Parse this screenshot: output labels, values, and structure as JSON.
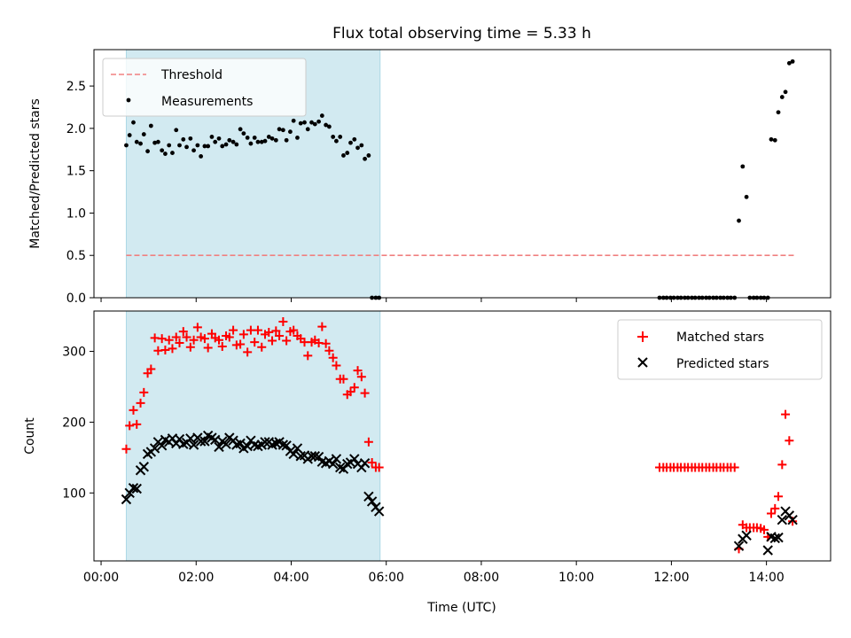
{
  "figure": {
    "title": "Flux total observing time = 5.33 h"
  },
  "colors": {
    "band": "#add8e6",
    "threshold": "#f08080",
    "matched": "#ff0000",
    "predicted": "#000000",
    "measurement": "#000000"
  },
  "chart_data": [
    {
      "type": "scatter",
      "panel": "top",
      "xlabel": "",
      "ylabel": "Matched/Predicted stars",
      "xlim": [
        -0.15,
        15.35
      ],
      "ylim": [
        0,
        2.93
      ],
      "yticks": [
        0.0,
        0.5,
        1.0,
        1.5,
        2.0,
        2.5
      ],
      "ytick_labels": [
        "0.0",
        "0.5",
        "1.0",
        "1.5",
        "2.0",
        "2.5"
      ],
      "shaded_span_hours": [
        0.53,
        5.87
      ],
      "legend": {
        "position": "top-left",
        "entries": [
          "Threshold",
          "Measurements"
        ]
      },
      "series": [
        {
          "name": "Threshold",
          "style": "dashed-line",
          "x": [
            0.53,
            14.6
          ],
          "y": [
            0.5,
            0.5
          ]
        },
        {
          "name": "Measurements",
          "style": "dot",
          "x": [
            0.53,
            0.6,
            0.68,
            0.75,
            0.83,
            0.9,
            0.98,
            1.05,
            1.13,
            1.2,
            1.28,
            1.35,
            1.43,
            1.5,
            1.58,
            1.65,
            1.73,
            1.8,
            1.88,
            1.95,
            2.03,
            2.1,
            2.18,
            2.25,
            2.33,
            2.4,
            2.48,
            2.55,
            2.63,
            2.7,
            2.78,
            2.85,
            2.93,
            3.0,
            3.08,
            3.15,
            3.23,
            3.3,
            3.38,
            3.45,
            3.53,
            3.6,
            3.68,
            3.75,
            3.83,
            3.9,
            3.98,
            4.05,
            4.13,
            4.2,
            4.28,
            4.35,
            4.43,
            4.5,
            4.58,
            4.65,
            4.73,
            4.8,
            4.88,
            4.95,
            5.03,
            5.1,
            5.18,
            5.25,
            5.33,
            5.4,
            5.48,
            5.55,
            5.63,
            5.7,
            5.78,
            5.85,
            11.75,
            11.83,
            11.9,
            11.98,
            12.05,
            12.13,
            12.2,
            12.28,
            12.35,
            12.43,
            12.5,
            12.58,
            12.65,
            12.73,
            12.8,
            12.88,
            12.95,
            13.03,
            13.1,
            13.18,
            13.25,
            13.33,
            13.42,
            13.5,
            13.58,
            13.65,
            13.73,
            13.8,
            13.88,
            13.95,
            14.03,
            14.1,
            14.18,
            14.25,
            14.33,
            14.4,
            14.48,
            14.55
          ],
          "y": [
            1.8,
            1.92,
            2.07,
            1.84,
            1.82,
            1.93,
            1.73,
            2.03,
            1.83,
            1.84,
            1.74,
            1.7,
            1.8,
            1.71,
            1.98,
            1.8,
            1.87,
            1.78,
            1.88,
            1.74,
            1.8,
            1.67,
            1.79,
            1.79,
            1.9,
            1.84,
            1.88,
            1.79,
            1.81,
            1.86,
            1.84,
            1.81,
            1.99,
            1.94,
            1.89,
            1.82,
            1.89,
            1.84,
            1.84,
            1.85,
            1.9,
            1.88,
            1.86,
            1.99,
            1.98,
            1.86,
            1.96,
            2.09,
            1.89,
            2.06,
            2.07,
            1.99,
            2.07,
            2.05,
            2.08,
            2.15,
            2.04,
            2.02,
            1.9,
            1.85,
            1.9,
            1.68,
            1.71,
            1.83,
            1.87,
            1.77,
            1.8,
            1.64,
            1.68,
            0.0,
            0.0,
            0.0,
            0.0,
            0.0,
            0.0,
            0.0,
            0.0,
            0.0,
            0.0,
            0.0,
            0.0,
            0.0,
            0.0,
            0.0,
            0.0,
            0.0,
            0.0,
            0.0,
            0.0,
            0.0,
            0.0,
            0.0,
            0.0,
            0.0,
            0.91,
            1.55,
            1.19,
            0.0,
            0.0,
            0.0,
            0.0,
            0.0,
            0.0,
            1.87,
            1.86,
            2.19,
            2.37,
            2.43,
            2.77,
            2.79
          ]
        }
      ]
    },
    {
      "type": "scatter",
      "panel": "bottom",
      "xlabel": "Time (UTC)",
      "ylabel": "Count",
      "xlim": [
        -0.15,
        15.35
      ],
      "ylim": [
        4,
        357
      ],
      "yticks": [
        100,
        200,
        300
      ],
      "ytick_labels": [
        "100",
        "200",
        "300"
      ],
      "xticks": [
        0,
        2,
        4,
        6,
        8,
        10,
        12,
        14
      ],
      "xtick_labels": [
        "00:00",
        "02:00",
        "04:00",
        "06:00",
        "08:00",
        "10:00",
        "12:00",
        "14:00"
      ],
      "shaded_span_hours": [
        0.53,
        5.87
      ],
      "legend": {
        "position": "top-right",
        "entries": [
          "Matched stars",
          "Predicted stars"
        ]
      },
      "series": [
        {
          "name": "Matched stars",
          "marker": "plus",
          "x": [
            0.53,
            0.6,
            0.68,
            0.75,
            0.83,
            0.9,
            0.98,
            1.05,
            1.13,
            1.2,
            1.28,
            1.35,
            1.43,
            1.5,
            1.58,
            1.65,
            1.73,
            1.8,
            1.88,
            1.95,
            2.03,
            2.1,
            2.18,
            2.25,
            2.33,
            2.4,
            2.48,
            2.55,
            2.63,
            2.7,
            2.78,
            2.85,
            2.93,
            3.0,
            3.08,
            3.15,
            3.23,
            3.3,
            3.38,
            3.45,
            3.53,
            3.6,
            3.68,
            3.75,
            3.83,
            3.9,
            3.98,
            4.05,
            4.13,
            4.2,
            4.28,
            4.35,
            4.43,
            4.5,
            4.58,
            4.65,
            4.73,
            4.8,
            4.88,
            4.95,
            5.03,
            5.1,
            5.18,
            5.25,
            5.33,
            5.4,
            5.48,
            5.55,
            5.63,
            5.7,
            5.78,
            5.85,
            11.75,
            11.83,
            11.9,
            11.98,
            12.05,
            12.13,
            12.2,
            12.28,
            12.35,
            12.43,
            12.5,
            12.58,
            12.65,
            12.73,
            12.8,
            12.88,
            12.95,
            13.03,
            13.1,
            13.18,
            13.25,
            13.33,
            13.42,
            13.5,
            13.58,
            13.65,
            13.73,
            13.8,
            13.88,
            13.95,
            14.03,
            14.1,
            14.18,
            14.25,
            14.33,
            14.4,
            14.48,
            14.55
          ],
          "y": [
            162,
            195,
            217,
            197,
            227,
            242,
            269,
            275,
            319,
            301,
            318,
            302,
            316,
            304,
            320,
            312,
            328,
            320,
            306,
            316,
            334,
            320,
            318,
            305,
            325,
            319,
            316,
            307,
            322,
            320,
            330,
            309,
            310,
            324,
            299,
            330,
            313,
            330,
            306,
            324,
            327,
            315,
            329,
            322,
            342,
            315,
            328,
            330,
            322,
            318,
            313,
            294,
            313,
            316,
            312,
            335,
            311,
            301,
            291,
            280,
            261,
            261,
            239,
            243,
            249,
            273,
            264,
            241,
            172,
            143,
            136,
            136,
            136,
            136,
            136,
            136,
            136,
            136,
            136,
            136,
            136,
            136,
            136,
            136,
            136,
            136,
            136,
            136,
            136,
            136,
            136,
            136,
            136,
            136,
            21,
            55,
            51,
            51,
            51,
            51,
            50,
            48,
            38,
            71,
            78,
            95,
            140,
            211,
            174,
            60
          ]
        },
        {
          "name": "Predicted stars",
          "marker": "x",
          "x": [
            0.53,
            0.6,
            0.68,
            0.75,
            0.83,
            0.9,
            0.98,
            1.05,
            1.13,
            1.2,
            1.28,
            1.35,
            1.43,
            1.5,
            1.58,
            1.65,
            1.73,
            1.8,
            1.88,
            1.95,
            2.03,
            2.1,
            2.18,
            2.25,
            2.33,
            2.4,
            2.48,
            2.55,
            2.63,
            2.7,
            2.78,
            2.85,
            2.93,
            3.0,
            3.08,
            3.15,
            3.23,
            3.3,
            3.38,
            3.45,
            3.53,
            3.6,
            3.68,
            3.75,
            3.83,
            3.9,
            3.98,
            4.05,
            4.13,
            4.2,
            4.28,
            4.35,
            4.43,
            4.5,
            4.58,
            4.65,
            4.73,
            4.8,
            4.88,
            4.95,
            5.03,
            5.1,
            5.18,
            5.25,
            5.33,
            5.4,
            5.48,
            5.55,
            5.63,
            5.7,
            5.78,
            5.85,
            13.42,
            13.5,
            13.58,
            14.03,
            14.1,
            14.18,
            14.25,
            14.33,
            14.4,
            14.48,
            14.55
          ],
          "y": [
            91,
            100,
            107,
            106,
            132,
            137,
            155,
            158,
            163,
            172,
            167,
            175,
            172,
            177,
            170,
            176,
            169,
            171,
            177,
            168,
            178,
            173,
            173,
            181,
            178,
            175,
            165,
            173,
            169,
            178,
            174,
            168,
            170,
            163,
            166,
            174,
            168,
            166,
            168,
            172,
            172,
            168,
            170,
            172,
            168,
            167,
            159,
            155,
            163,
            152,
            153,
            148,
            152,
            152,
            151,
            144,
            142,
            145,
            141,
            148,
            136,
            134,
            141,
            143,
            148,
            141,
            136,
            142,
            95,
            88,
            80,
            74,
            25,
            35,
            40,
            19,
            38,
            36,
            37,
            62,
            74,
            68,
            62
          ]
        }
      ]
    }
  ]
}
